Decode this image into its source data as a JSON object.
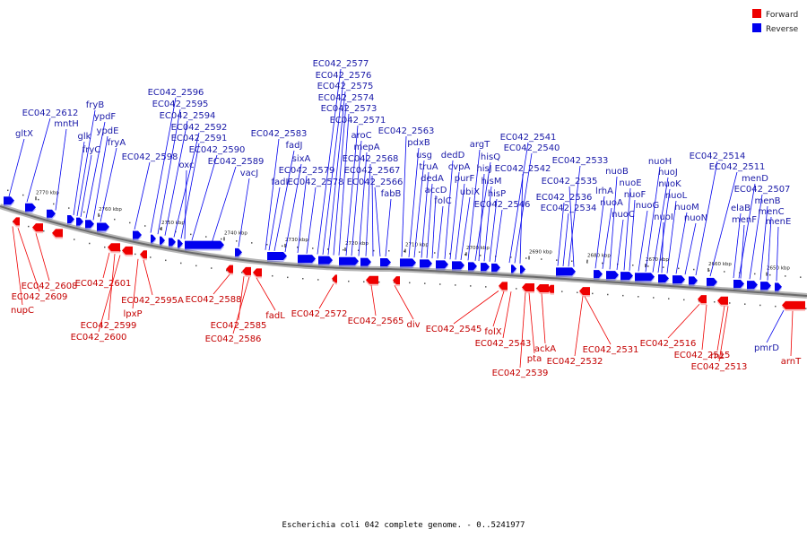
{
  "caption": "Escherichia coli 042 complete genome. - 0..5241977",
  "legend": [
    {
      "label": "Forward",
      "color": "#ee0000"
    },
    {
      "label": "Reverse",
      "color": "#0000ee"
    }
  ],
  "colors": {
    "forward": "#ee0000",
    "reverse": "#0000ee",
    "backbone": "#6a6a6a"
  },
  "ticks": [
    "2770 kbp",
    "2760 kbp",
    "2750 kbp",
    "2740 kbp",
    "2730 kbp",
    "2720 kbp",
    "2710 kbp",
    "2700 kbp",
    "2690 kbp",
    "2680 kbp",
    "2670 kbp",
    "2660 kbp",
    "2650 kbp"
  ],
  "reverse_labels": [
    "gltX",
    "EC042_2612",
    "mntH",
    "glk",
    "fryB",
    "fryC",
    "ypdF",
    "ypdE",
    "fryA",
    "EC042_2598",
    "EC042_2596",
    "EC042_2595",
    "EC042_2594",
    "EC042_2592",
    "EC042_2591",
    "oxc",
    "EC042_2590",
    "EC042_2589",
    "vacJ",
    "EC042_2583",
    "fadJ",
    "fadI",
    "sixA",
    "EC042_2579",
    "EC042_2578",
    "EC042_2577",
    "EC042_2576",
    "EC042_2575",
    "EC042_2574",
    "EC042_2573",
    "EC042_2571",
    "aroC",
    "mepA",
    "EC042_2568",
    "EC042_2567",
    "EC042_2566",
    "fabB",
    "EC042_2563",
    "pdxB",
    "usg",
    "truA",
    "dedA",
    "accD",
    "folC",
    "dedD",
    "cvpA",
    "purF",
    "ubiX",
    "argT",
    "hisQ",
    "hisJ",
    "hisM",
    "hisP",
    "EC042_2546",
    "EC042_2541",
    "EC042_2540",
    "EC042_2542",
    "EC042_2536",
    "EC042_2534",
    "EC042_2533",
    "EC042_2535",
    "lrhA",
    "nuoA",
    "nuoB",
    "nuoC",
    "nuoE",
    "nuoF",
    "nuoG",
    "nuoH",
    "nuoJ",
    "nuoK",
    "nuoI",
    "nuoL",
    "nuoM",
    "nuoN",
    "EC042_2514",
    "EC042_2511",
    "menD",
    "elaB",
    "menF",
    "EC042_2507",
    "menB",
    "menC",
    "menE"
  ],
  "forward_labels": [
    "EC042_2608",
    "EC042_2609",
    "nupC",
    "EC042_2601",
    "EC042_2599",
    "EC042_2600",
    "lpxP",
    "EC042_2595A",
    "EC042_2588",
    "EC042_2585",
    "EC042_2586",
    "fadL",
    "EC042_2572",
    "EC042_2565",
    "div",
    "EC042_2545",
    "folX",
    "EC042_2543",
    "pta",
    "ackA",
    "EC042_2539",
    "EC042_2532",
    "EC042_2531",
    "EC042_2516",
    "EC042_2515",
    "rnz",
    "EC042_2513",
    "pmrD",
    "arnT"
  ]
}
